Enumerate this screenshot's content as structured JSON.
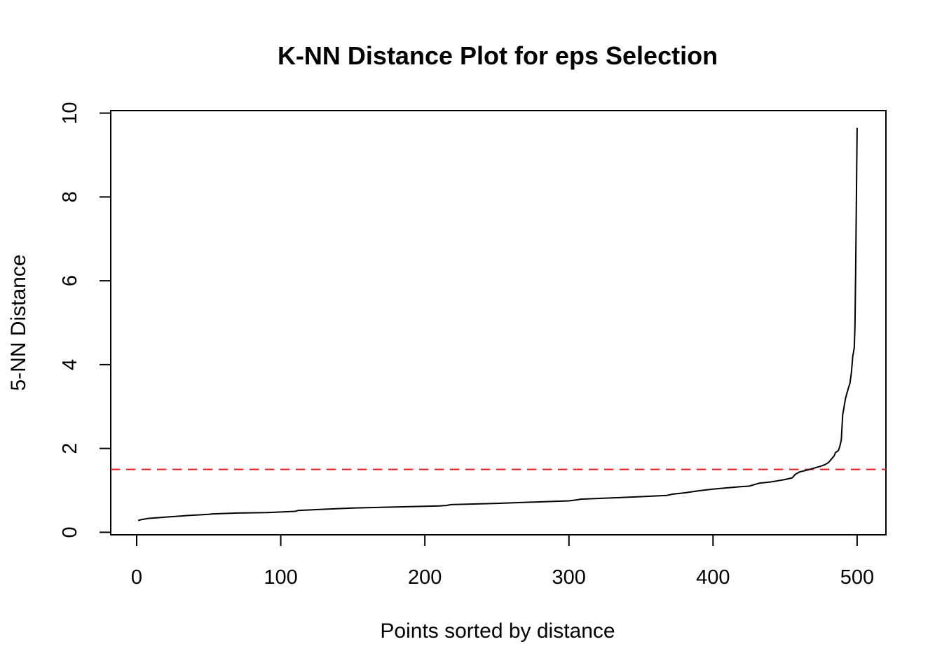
{
  "chart_data": {
    "type": "line",
    "title": "K-NN Distance Plot for eps Selection",
    "xlabel": "Points sorted by distance",
    "ylabel": "5-NN Distance",
    "xlim": [
      -18,
      520
    ],
    "ylim": [
      -0.06,
      10.06
    ],
    "x_ticks": [
      0,
      100,
      200,
      300,
      400,
      500
    ],
    "y_ticks": [
      0,
      2,
      4,
      6,
      8,
      10
    ],
    "grid": false,
    "colors": {
      "line": "#000000",
      "threshold": "#e41a1c",
      "axis": "#000000"
    },
    "series": [
      {
        "x": [
          1,
          3,
          8,
          20,
          35,
          50,
          53,
          70,
          90,
          110,
          112,
          130,
          150,
          175,
          200,
          210,
          215,
          218,
          250,
          275,
          300,
          305,
          308,
          330,
          350,
          368,
          372,
          380,
          390,
          400,
          410,
          420,
          425,
          428,
          432,
          440,
          445,
          450,
          455,
          457,
          460,
          465,
          470,
          475,
          478,
          480,
          482,
          484,
          485,
          487,
          488,
          489,
          490,
          492,
          494,
          495,
          496,
          497,
          498,
          498.5,
          499,
          499.5,
          500
        ],
        "values": [
          0.28,
          0.3,
          0.33,
          0.36,
          0.4,
          0.43,
          0.44,
          0.46,
          0.47,
          0.5,
          0.52,
          0.55,
          0.58,
          0.6,
          0.62,
          0.63,
          0.64,
          0.66,
          0.69,
          0.72,
          0.75,
          0.77,
          0.79,
          0.82,
          0.85,
          0.88,
          0.91,
          0.94,
          0.99,
          1.03,
          1.06,
          1.09,
          1.1,
          1.13,
          1.17,
          1.2,
          1.23,
          1.26,
          1.3,
          1.38,
          1.44,
          1.48,
          1.53,
          1.58,
          1.62,
          1.66,
          1.74,
          1.82,
          1.9,
          1.95,
          2.05,
          2.2,
          2.8,
          3.2,
          3.45,
          3.55,
          3.8,
          4.2,
          4.4,
          4.9,
          6.2,
          8.0,
          9.65
        ]
      }
    ],
    "threshold": {
      "y": 1.5,
      "style": "dashed"
    }
  }
}
